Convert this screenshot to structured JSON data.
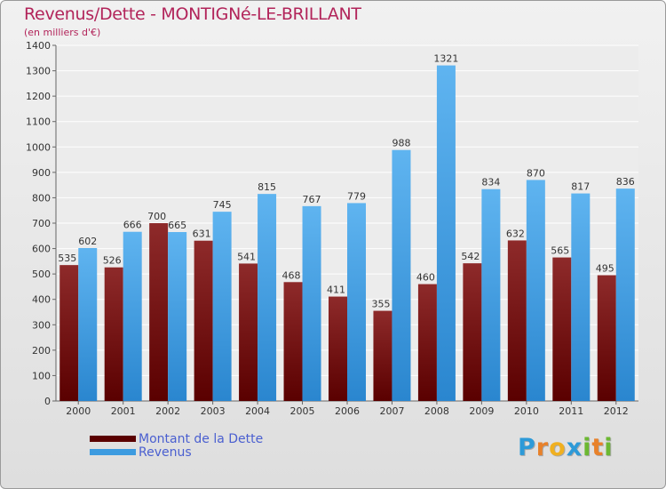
{
  "chart_data": {
    "type": "bar",
    "title": "Revenus/Dette - MONTIGNé-LE-BRILLANT",
    "subtitle": "(en milliers d'€)",
    "xlabel": "",
    "ylabel": "",
    "ylim": [
      0,
      1400
    ],
    "yticks": [
      0,
      100,
      200,
      300,
      400,
      500,
      600,
      700,
      800,
      900,
      1000,
      1100,
      1200,
      1300,
      1400
    ],
    "grid": true,
    "categories": [
      "2000",
      "2001",
      "2002",
      "2003",
      "2004",
      "2005",
      "2006",
      "2007",
      "2008",
      "2009",
      "2010",
      "2011",
      "2012"
    ],
    "series": [
      {
        "name": "Montant de la Dette",
        "color": "#7a0f0f",
        "values": [
          535,
          526,
          700,
          631,
          541,
          468,
          411,
          355,
          460,
          542,
          632,
          565,
          495
        ]
      },
      {
        "name": "Revenus",
        "color": "#3c9be0",
        "values": [
          602,
          666,
          665,
          745,
          815,
          767,
          779,
          988,
          1321,
          834,
          870,
          817,
          836
        ]
      }
    ],
    "legend_position": "bottom-left"
  },
  "brand": {
    "letters": [
      "P",
      "r",
      "o",
      "x",
      "i",
      "t",
      "i"
    ],
    "colors": [
      "#2d9ad8",
      "#e8812a",
      "#f0b020",
      "#2d9ad8",
      "#6cb832",
      "#e8812a",
      "#6cb832"
    ]
  }
}
